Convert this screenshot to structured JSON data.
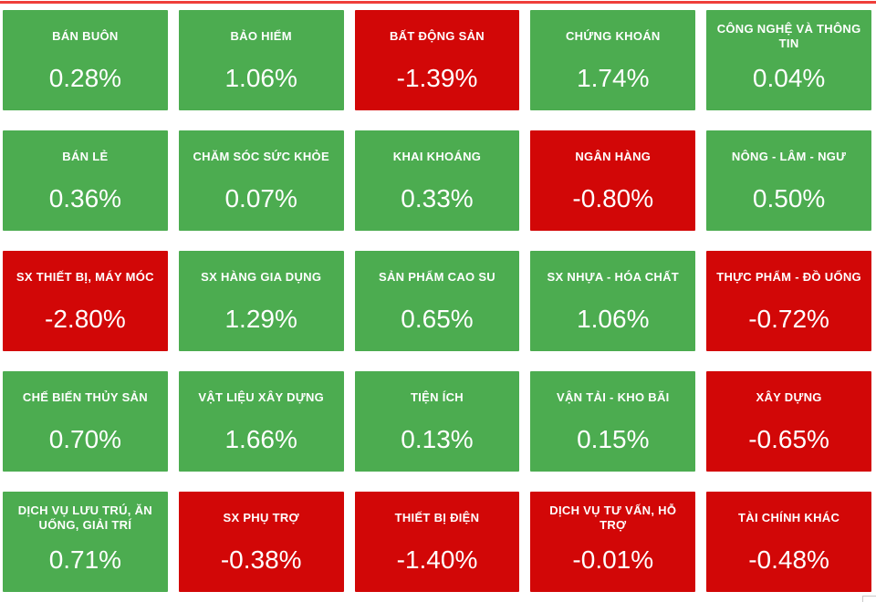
{
  "colors": {
    "positive_tile": "#4cac50",
    "negative_tile": "#d20707",
    "tile_text": "#ffffff",
    "top_divider": "#ef3e3a"
  },
  "heatmap": {
    "tiles": [
      {
        "label": "BÁN BUÔN",
        "value": "0.28%",
        "trend": "up"
      },
      {
        "label": "BẢO HIỂM",
        "value": "1.06%",
        "trend": "up"
      },
      {
        "label": "BẤT ĐỘNG SẢN",
        "value": "-1.39%",
        "trend": "down"
      },
      {
        "label": "CHỨNG KHOÁN",
        "value": "1.74%",
        "trend": "up"
      },
      {
        "label": "CÔNG NGHỆ VÀ THÔNG TIN",
        "value": "0.04%",
        "trend": "up"
      },
      {
        "label": "BÁN LẺ",
        "value": "0.36%",
        "trend": "up"
      },
      {
        "label": "CHĂM SÓC SỨC KHỎE",
        "value": "0.07%",
        "trend": "up"
      },
      {
        "label": "KHAI KHOÁNG",
        "value": "0.33%",
        "trend": "up"
      },
      {
        "label": "NGÂN HÀNG",
        "value": "-0.80%",
        "trend": "down"
      },
      {
        "label": "NÔNG - LÂM - NGƯ",
        "value": "0.50%",
        "trend": "up"
      },
      {
        "label": "SX THIẾT BỊ, MÁY MÓC",
        "value": "-2.80%",
        "trend": "down"
      },
      {
        "label": "SX HÀNG GIA DỤNG",
        "value": "1.29%",
        "trend": "up"
      },
      {
        "label": "SẢN PHẨM CAO SU",
        "value": "0.65%",
        "trend": "up"
      },
      {
        "label": "SX NHỰA - HÓA CHẤT",
        "value": "1.06%",
        "trend": "up"
      },
      {
        "label": "THỰC PHẨM - ĐỒ UỐNG",
        "value": "-0.72%",
        "trend": "down"
      },
      {
        "label": "CHẾ BIẾN THỦY SẢN",
        "value": "0.70%",
        "trend": "up"
      },
      {
        "label": "VẬT LIỆU XÂY DỰNG",
        "value": "1.66%",
        "trend": "up"
      },
      {
        "label": "TIỆN ÍCH",
        "value": "0.13%",
        "trend": "up"
      },
      {
        "label": "VẬN TẢI - KHO BÃI",
        "value": "0.15%",
        "trend": "up"
      },
      {
        "label": "XÂY DỰNG",
        "value": "-0.65%",
        "trend": "down"
      },
      {
        "label": "DỊCH VỤ LƯU TRÚ, ĂN UỐNG, GIẢI TRÍ",
        "value": "0.71%",
        "trend": "up"
      },
      {
        "label": "SX PHỤ TRỢ",
        "value": "-0.38%",
        "trend": "down"
      },
      {
        "label": "THIẾT BỊ ĐIỆN",
        "value": "-1.40%",
        "trend": "down"
      },
      {
        "label": "DỊCH VỤ TƯ VẤN, HỖ TRỢ",
        "value": "-0.01%",
        "trend": "down"
      },
      {
        "label": "TÀI CHÍNH KHÁC",
        "value": "-0.48%",
        "trend": "down"
      }
    ]
  }
}
